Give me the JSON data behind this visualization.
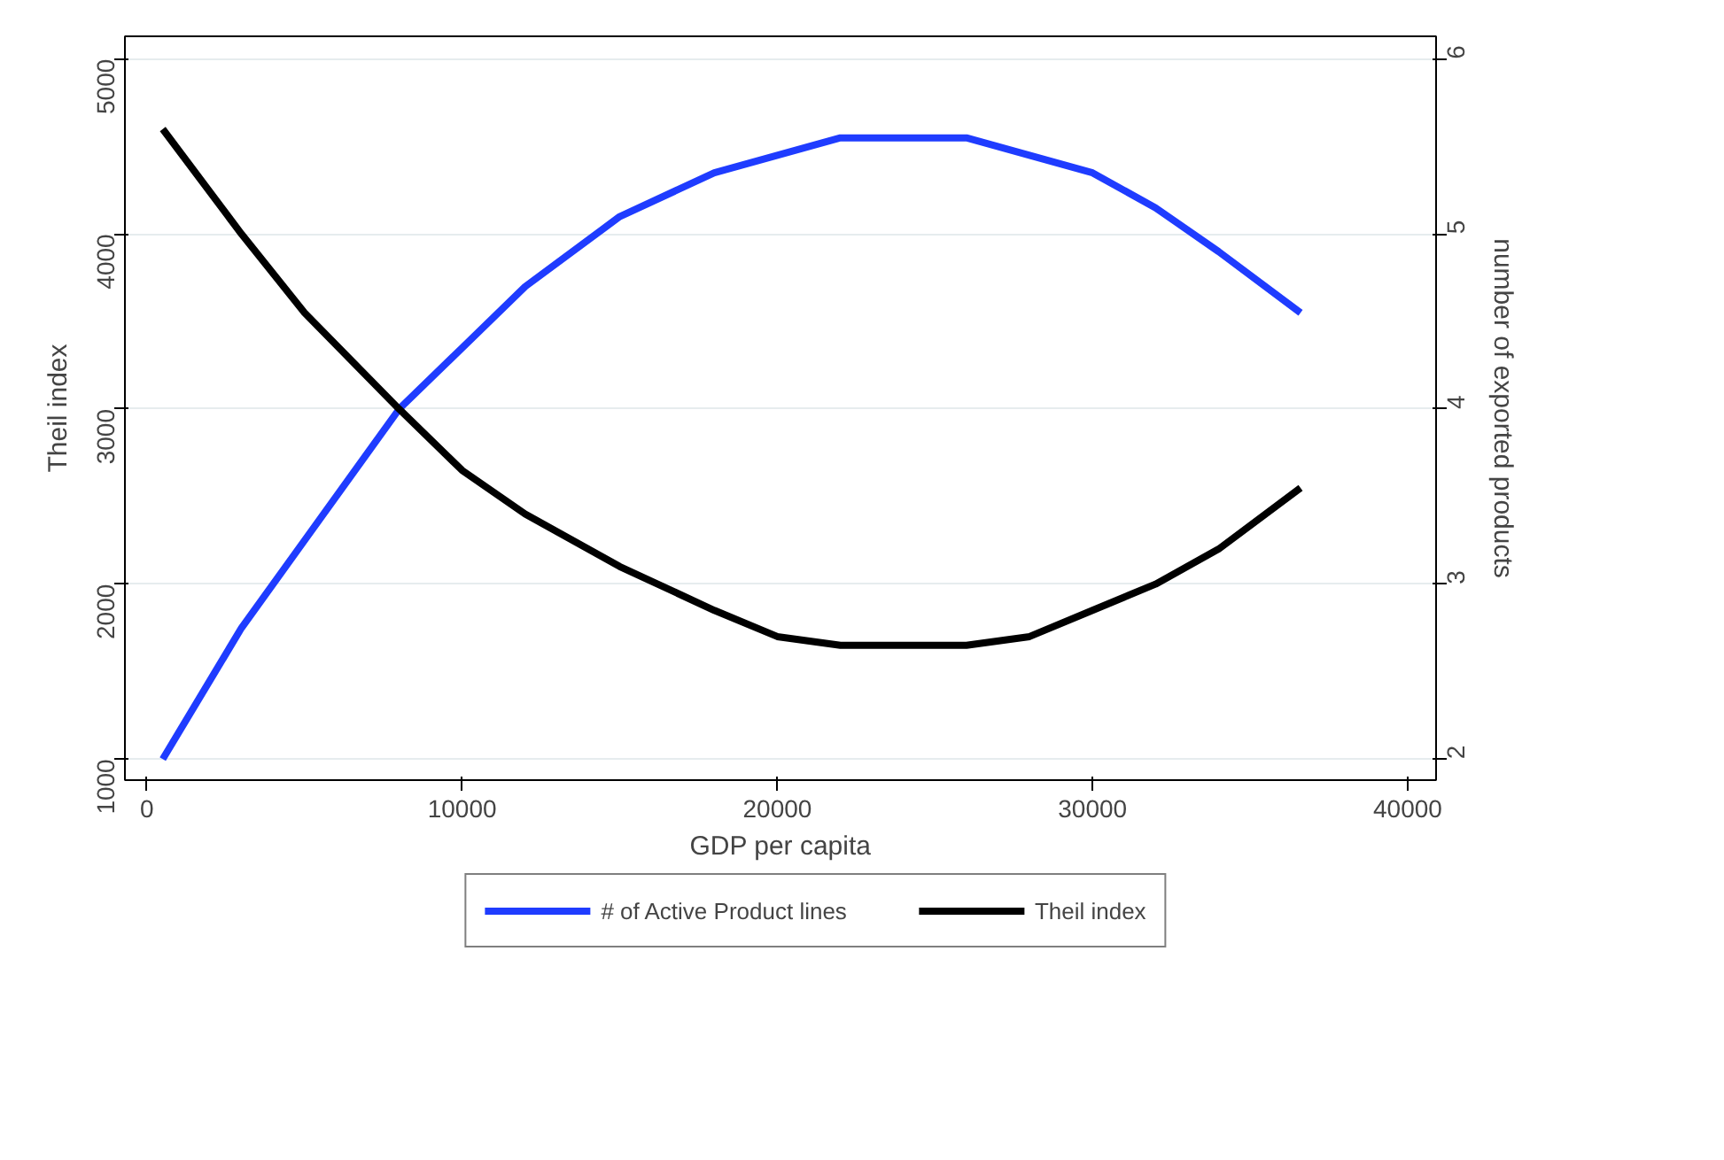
{
  "chart_data": {
    "type": "line",
    "xlabel": "GDP per capita",
    "ylabel": "Theil index",
    "y2label": "number of exported products",
    "xlim": [
      -700,
      40900
    ],
    "xticks": [
      0,
      10000,
      20000,
      30000,
      40000
    ],
    "ylim": [
      880,
      5130
    ],
    "yticks": [
      1000,
      2000,
      3000,
      4000,
      5000
    ],
    "y2lim": [
      1.88,
      6.13
    ],
    "y2ticks": [
      2,
      3,
      4,
      5,
      6
    ],
    "grid": "y",
    "legend": "bottom",
    "marker": "none",
    "line_style": "solid",
    "series": [
      {
        "name": "# of Active Product lines",
        "color": "#1f3cff",
        "x": [
          500,
          3000,
          5000,
          8000,
          10000,
          12000,
          15000,
          18000,
          20000,
          22000,
          24000,
          26000,
          28000,
          30000,
          32000,
          34000,
          36600
        ],
        "values": [
          1000,
          1750,
          2250,
          3000,
          3350,
          3700,
          4100,
          4350,
          4450,
          4550,
          4550,
          4550,
          4450,
          4350,
          4150,
          3900,
          3550
        ]
      },
      {
        "name": "Theil index",
        "color": "#000000",
        "axis": "y2",
        "x": [
          500,
          3000,
          5000,
          8000,
          10000,
          12000,
          15000,
          18000,
          20000,
          22000,
          24000,
          26000,
          28000,
          30000,
          32000,
          34000,
          36600
        ],
        "values": [
          5.6,
          5.0,
          4.55,
          4.0,
          3.65,
          3.4,
          3.1,
          2.85,
          2.7,
          2.65,
          2.65,
          2.65,
          2.7,
          2.85,
          3.0,
          3.2,
          3.55
        ]
      }
    ]
  }
}
